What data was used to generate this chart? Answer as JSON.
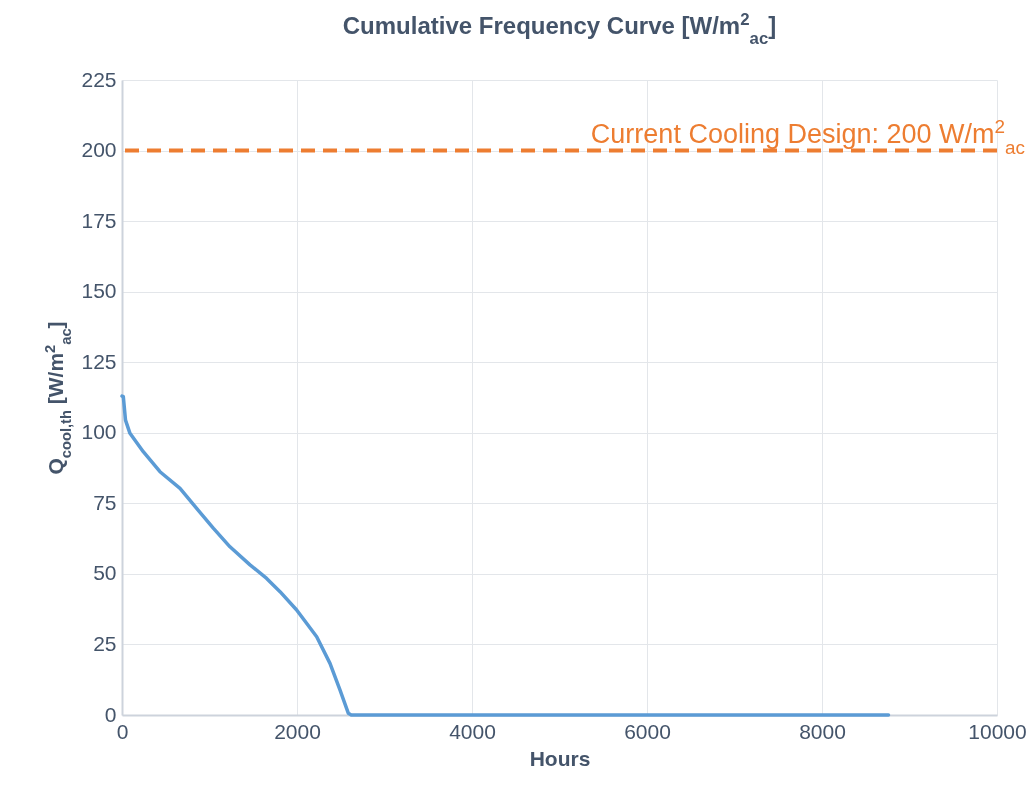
{
  "chart_data": {
    "type": "line",
    "title": "Cumulative Frequency Curve [W/m$^{2}$$_{ac}$]",
    "xlabel": "Hours",
    "ylabel": "Q$_{cool,th}$ [W/m$^{2}$$_{ac}$]",
    "x": [
      0,
      15,
      40,
      91,
      243,
      434,
      663,
      853,
      1043,
      1234,
      1463,
      1653,
      1806,
      1996,
      2225,
      2377,
      2491,
      2587,
      2620,
      4000,
      6000,
      8760
    ],
    "series": [
      {
        "color": "#5b9bd5",
        "values": [
          113,
          112.8,
          104.5,
          99.8,
          93.3,
          86.2,
          80.3,
          73.2,
          66.2,
          59.6,
          53.2,
          48.4,
          43.7,
          37.2,
          27.7,
          18.3,
          8.9,
          0.6,
          0,
          0,
          0,
          0
        ]
      }
    ],
    "xlim": [
      0,
      10000
    ],
    "xticks": [
      0,
      2000,
      4000,
      6000,
      8000,
      10000
    ],
    "ylim": [
      0,
      225
    ],
    "yticks": [
      0,
      25,
      50,
      75,
      100,
      125,
      150,
      175,
      200,
      225
    ],
    "ref_lines": [
      {
        "axis": "y",
        "value": 200,
        "label": "Current Cooling Design: 200 W/m$^{2}$$_{ac}$",
        "color": "#ed7d31",
        "line_style": "dashed"
      }
    ],
    "grid": true,
    "marker": "none",
    "line_style": "solid"
  }
}
